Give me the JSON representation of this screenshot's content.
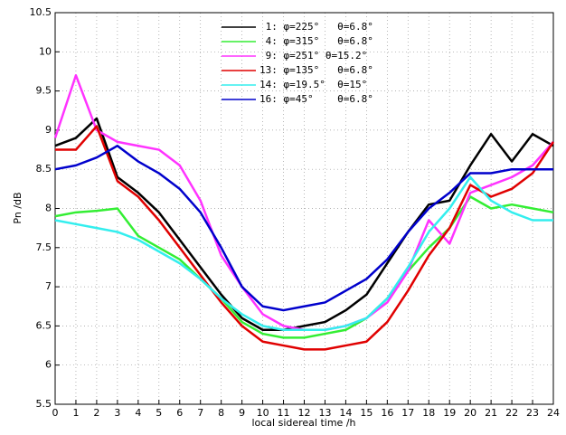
{
  "chart_data": {
    "type": "line",
    "x_label": "local sidereal time /h",
    "y_label": "Pn /dB",
    "x": [
      0,
      1,
      2,
      3,
      4,
      5,
      6,
      7,
      8,
      9,
      10,
      11,
      12,
      13,
      14,
      15,
      16,
      17,
      18,
      19,
      20,
      21,
      22,
      23,
      24
    ],
    "xlim": [
      0,
      24
    ],
    "ylim": [
      5.5,
      10.5
    ],
    "xticks": [
      0,
      1,
      2,
      3,
      4,
      5,
      6,
      7,
      8,
      9,
      10,
      11,
      12,
      13,
      14,
      15,
      16,
      17,
      18,
      19,
      20,
      21,
      22,
      23,
      24
    ],
    "yticks": [
      5.5,
      6,
      6.5,
      7,
      7.5,
      8,
      8.5,
      9,
      9.5,
      10,
      10.5
    ],
    "grid": true,
    "series": [
      {
        "name": " 1: φ=225°   θ=6.8°",
        "color": "#000000",
        "values": [
          8.8,
          8.9,
          9.15,
          8.4,
          8.2,
          7.95,
          7.6,
          7.25,
          6.9,
          6.6,
          6.45,
          6.45,
          6.5,
          6.55,
          6.7,
          6.9,
          7.3,
          7.7,
          8.05,
          8.1,
          8.55,
          8.95,
          8.6,
          8.95,
          8.8
        ]
      },
      {
        "name": " 4: φ=315°   θ=6.8°",
        "color": "#33ee33",
        "values": [
          7.9,
          7.95,
          7.97,
          8.0,
          7.65,
          7.5,
          7.35,
          7.1,
          6.85,
          6.55,
          6.4,
          6.35,
          6.35,
          6.4,
          6.45,
          6.6,
          6.85,
          7.2,
          7.5,
          7.75,
          8.15,
          8.0,
          8.05,
          8.0,
          7.95
        ]
      },
      {
        "name": " 9: φ=251° θ=15.2°",
        "color": "#ff33ff",
        "values": [
          8.9,
          9.7,
          9.0,
          8.85,
          8.8,
          8.75,
          8.55,
          8.1,
          7.4,
          7.0,
          6.65,
          6.5,
          6.45,
          6.45,
          6.5,
          6.6,
          6.8,
          7.2,
          7.85,
          7.55,
          8.2,
          8.3,
          8.4,
          8.55,
          8.85
        ]
      },
      {
        "name": "13: φ=135°   θ=6.8°",
        "color": "#e00000",
        "values": [
          8.75,
          8.75,
          9.05,
          8.35,
          8.15,
          7.85,
          7.5,
          7.15,
          6.8,
          6.5,
          6.3,
          6.25,
          6.2,
          6.2,
          6.25,
          6.3,
          6.55,
          6.95,
          7.4,
          7.75,
          8.3,
          8.15,
          8.25,
          8.45,
          8.85
        ]
      },
      {
        "name": "14: φ=19.5°  θ=15°",
        "color": "#33eeee",
        "values": [
          7.85,
          7.8,
          7.75,
          7.7,
          7.6,
          7.45,
          7.3,
          7.1,
          6.85,
          6.65,
          6.5,
          6.45,
          6.45,
          6.45,
          6.5,
          6.6,
          6.85,
          7.25,
          7.7,
          8.0,
          8.4,
          8.1,
          7.95,
          7.85,
          7.85
        ]
      },
      {
        "name": "16: φ=45°    θ=6.8°",
        "color": "#0000cc",
        "values": [
          8.5,
          8.55,
          8.65,
          8.8,
          8.6,
          8.45,
          8.25,
          7.95,
          7.5,
          7.0,
          6.75,
          6.7,
          6.75,
          6.8,
          6.95,
          7.1,
          7.35,
          7.7,
          8.0,
          8.2,
          8.45,
          8.45,
          8.5,
          8.5,
          8.5
        ]
      }
    ]
  }
}
